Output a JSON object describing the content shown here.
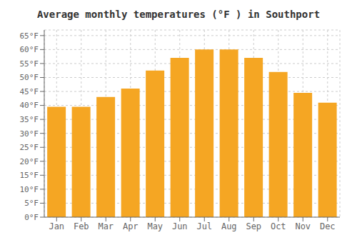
{
  "chart_data": {
    "type": "bar",
    "title": "Average monthly temperatures (°F ) in Southport",
    "categories": [
      "Jan",
      "Feb",
      "Mar",
      "Apr",
      "May",
      "Jun",
      "Jul",
      "Aug",
      "Sep",
      "Oct",
      "Nov",
      "Dec"
    ],
    "values": [
      39.5,
      39.5,
      43,
      46,
      52.5,
      57,
      60,
      60,
      57,
      52,
      44.5,
      41
    ],
    "color": "#F5A623",
    "ylim": [
      0,
      67
    ],
    "yticks": [
      {
        "value": 0,
        "label": "0°F"
      },
      {
        "value": 5,
        "label": "5°F"
      },
      {
        "value": 10,
        "label": "10°F"
      },
      {
        "value": 15,
        "label": "15°F"
      },
      {
        "value": 20,
        "label": "20°F"
      },
      {
        "value": 25,
        "label": "25°F"
      },
      {
        "value": 30,
        "label": "30°F"
      },
      {
        "value": 35,
        "label": "35°F"
      },
      {
        "value": 40,
        "label": "40°F"
      },
      {
        "value": 45,
        "label": "45°F"
      },
      {
        "value": 50,
        "label": "50°F"
      },
      {
        "value": 55,
        "label": "55°F"
      },
      {
        "value": 60,
        "label": "60°F"
      },
      {
        "value": 65,
        "label": "65°F"
      }
    ],
    "grid": true
  }
}
